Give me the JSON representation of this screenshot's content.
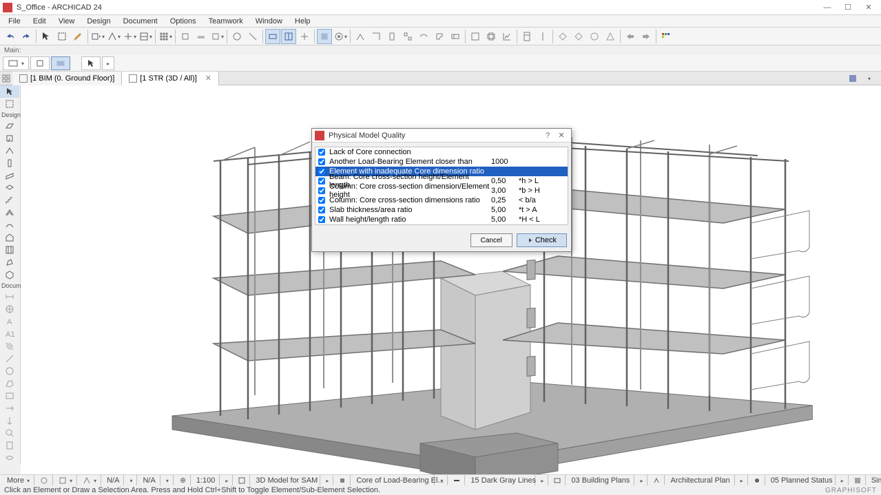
{
  "app": {
    "title": "S_Office - ARCHICAD 24",
    "icon_color": "#cc4040"
  },
  "menu": {
    "items": [
      "File",
      "Edit",
      "View",
      "Design",
      "Document",
      "Options",
      "Teamwork",
      "Window",
      "Help"
    ]
  },
  "sub_label": "Main:",
  "tabs": {
    "items": [
      {
        "label": "[1 BIM (0. Ground Floor)]",
        "active": false,
        "closable": false
      },
      {
        "label": "[1 STR (3D / All)]",
        "active": true,
        "closable": true
      }
    ]
  },
  "toolbox": {
    "section_design": "Design",
    "section_docume": "Docume"
  },
  "dialog": {
    "title": "Physical Model Quality",
    "help": "?",
    "close": "✕",
    "selected_index": 2,
    "rows": [
      {
        "checked": true,
        "label": "Lack of Core connection",
        "value": "",
        "cond": ""
      },
      {
        "checked": true,
        "label": "Another Load-Bearing Element closer than",
        "value": "1000",
        "cond": ""
      },
      {
        "checked": true,
        "label": "Element with inadequate Core dimension ratio",
        "value": "",
        "cond": ""
      },
      {
        "checked": true,
        "label": "Beam: Core cross-section height/Element length",
        "value": "0,50",
        "cond": "*h > L"
      },
      {
        "checked": true,
        "label": "Column: Core cross-section dimension/Element height",
        "value": "3,00",
        "cond": "*b > H"
      },
      {
        "checked": true,
        "label": "Column: Core cross-section dimensions ratio",
        "value": "0,25",
        "cond": "< b/a"
      },
      {
        "checked": true,
        "label": "Slab thickness/area ratio",
        "value": "5,00",
        "cond": "*t > A"
      },
      {
        "checked": true,
        "label": "Wall height/length ratio",
        "value": "5,00",
        "cond": "*H < L"
      }
    ],
    "cancel": "Cancel",
    "check": "Check"
  },
  "status": {
    "more": "More",
    "na1": "N/A",
    "na2": "N/A",
    "scale": "1:100",
    "model_label": "3D Model for SAM",
    "core_label": "Core of Load-Bearing El...",
    "lines_label": "15 Dark Gray Lines",
    "plans_label": "03 Building Plans",
    "arch_label": "Architectural Plan",
    "planned_label": "05 Planned Status",
    "shading_label": "Simple Shading"
  },
  "hint": "Click an Element or Draw a Selection Area. Press and Hold Ctrl+Shift to Toggle Element/Sub-Element Selection.",
  "brand": "GRAPHISOFT",
  "colors": {
    "selected_row_bg": "#2060c0",
    "accent_blue": "#d0e0f0",
    "border_blue": "#7090c0",
    "building_line": "#808080",
    "building_fill": "#b8b8b8",
    "building_dark": "#909090"
  }
}
